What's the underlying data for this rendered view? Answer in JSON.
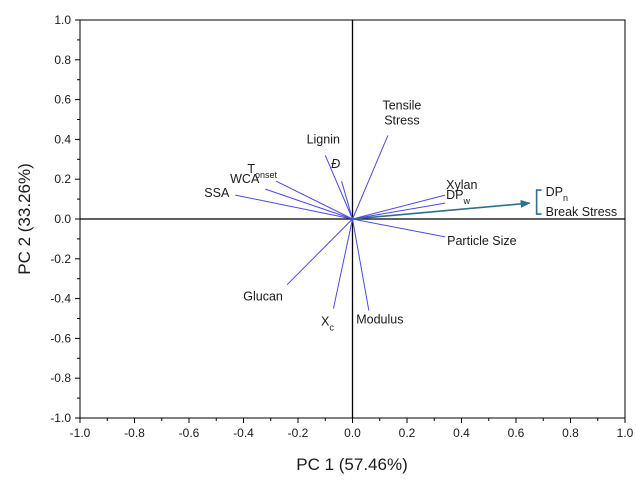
{
  "chart_data": {
    "type": "scatter",
    "subtype": "pca-loading-biplot",
    "title": "",
    "xlabel": "PC 1 (57.46%)",
    "ylabel": "PC 2 (33.26%)",
    "xlim": [
      -1.0,
      1.0
    ],
    "ylim": [
      -1.0,
      1.0
    ],
    "x_ticks": [
      "-1.0",
      "-0.8",
      "-0.6",
      "-0.4",
      "-0.2",
      "0.0",
      "0.2",
      "0.4",
      "0.6",
      "0.8",
      "1.0"
    ],
    "y_ticks": [
      "1.0",
      "0.8",
      "0.6",
      "0.4",
      "0.2",
      "0.0",
      "-0.2",
      "-0.4",
      "-0.6",
      "-0.8",
      "-1.0"
    ],
    "grid": false,
    "vectors": [
      {
        "label": "Tensile Stress",
        "x": 0.13,
        "y": 0.42,
        "color": "#4a4ae0"
      },
      {
        "label": "Lignin",
        "x": -0.1,
        "y": 0.32,
        "color": "#4a4ae0"
      },
      {
        "label": "Đ",
        "label_italic": true,
        "x": -0.04,
        "y": 0.19,
        "color": "#4a4ae0"
      },
      {
        "label": "Tonset",
        "label_main": "T",
        "label_sub": "onset",
        "x": -0.28,
        "y": 0.19,
        "color": "#4a4ae0"
      },
      {
        "label": "WCA",
        "x": -0.32,
        "y": 0.15,
        "color": "#4a4ae0"
      },
      {
        "label": "SSA",
        "x": -0.43,
        "y": 0.12,
        "color": "#4a4ae0"
      },
      {
        "label": "Xylan",
        "x": 0.34,
        "y": 0.12,
        "color": "#4a4ae0"
      },
      {
        "label": "DPw",
        "label_main": "DP",
        "label_sub": "w",
        "x": 0.34,
        "y": 0.08,
        "color": "#4a4ae0"
      },
      {
        "label": "Particle Size",
        "x": 0.34,
        "y": -0.09,
        "color": "#4a4ae0"
      },
      {
        "label": "Glucan",
        "x": -0.24,
        "y": -0.33,
        "color": "#4a4ae0"
      },
      {
        "label": "Xc",
        "label_main": "X",
        "label_sub": "c",
        "x": -0.07,
        "y": -0.45,
        "color": "#4a4ae0"
      },
      {
        "label": "Modulus",
        "x": 0.06,
        "y": -0.46,
        "color": "#4a4ae0"
      }
    ],
    "highlighted_vector": {
      "labels": [
        "DPn",
        "Break Stress"
      ],
      "label_1_main": "DP",
      "label_1_sub": "n",
      "label_2": "Break Stress",
      "x": 0.65,
      "y": 0.08,
      "color": "#2f6f8f"
    }
  }
}
